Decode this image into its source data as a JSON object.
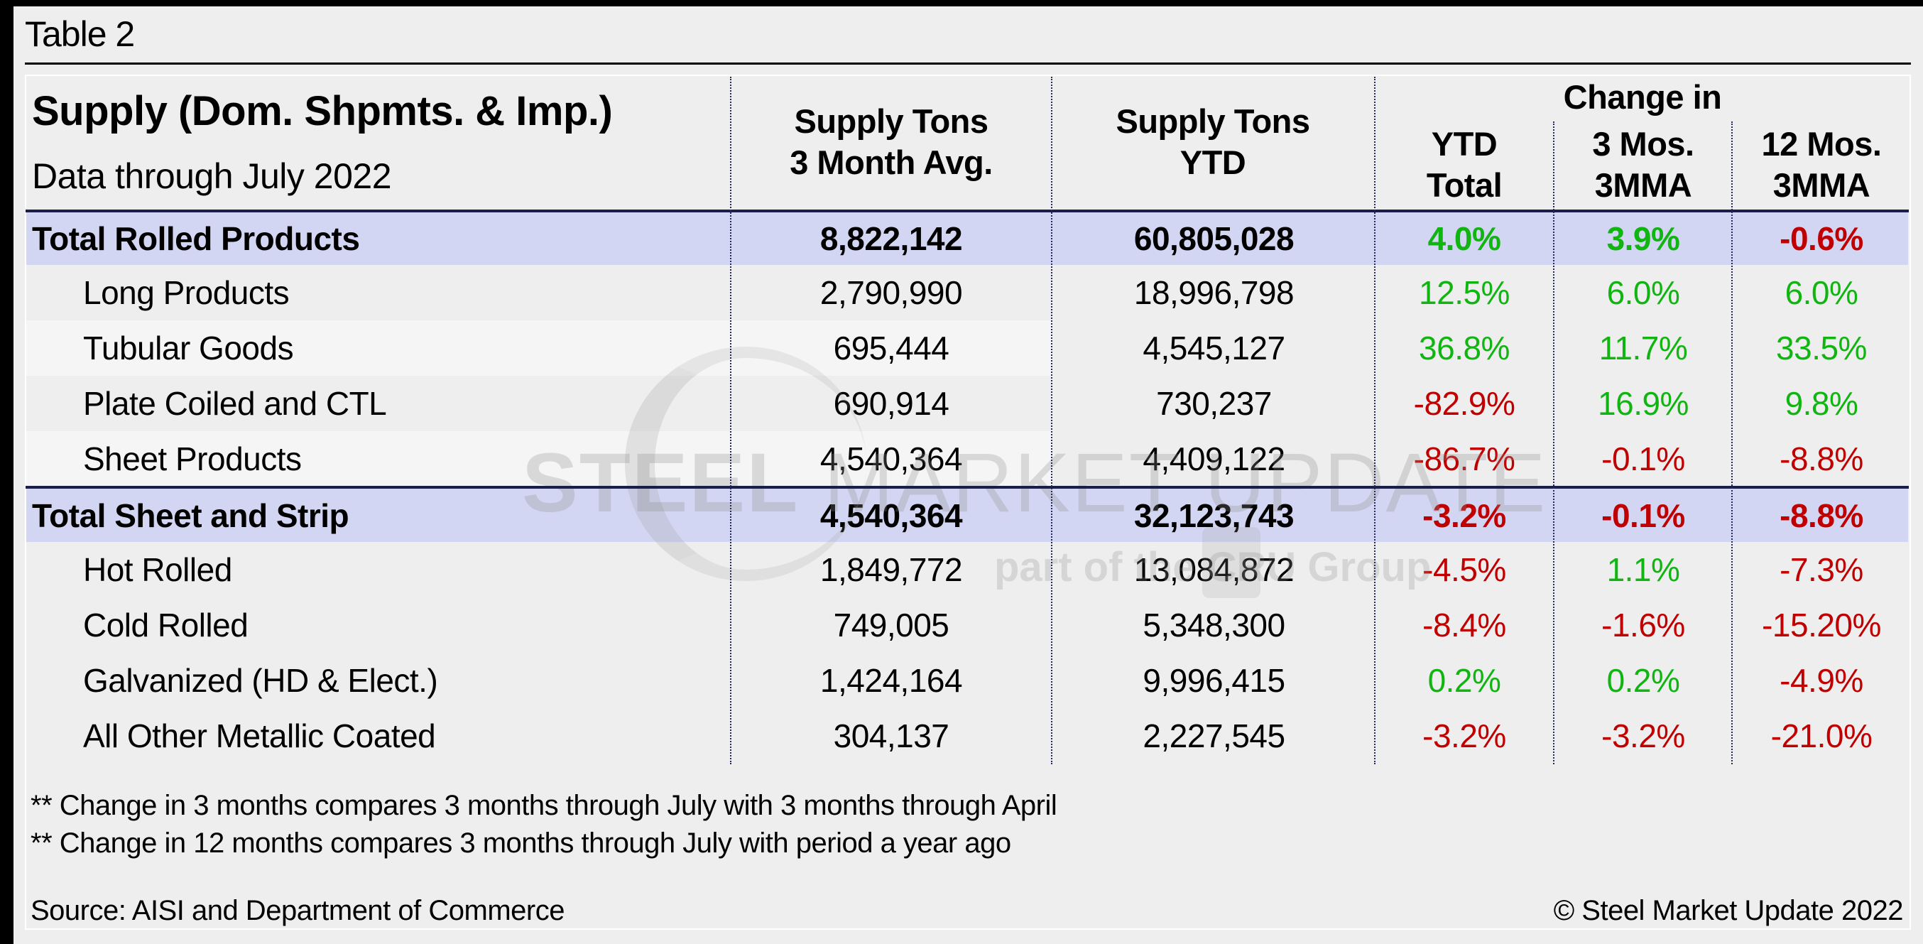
{
  "page": {
    "table_label": "Table 2",
    "title": "Supply (Dom. Shpmts. & Imp.)",
    "subtitle": "Data through July 2022"
  },
  "columns": {
    "supply_3mo_line1": "Supply Tons",
    "supply_3mo_line2": "3 Month Avg.",
    "supply_ytd_line1": "Supply Tons",
    "supply_ytd_line2": "YTD",
    "change_group": "Change in",
    "ytd_total_line1": "YTD",
    "ytd_total_line2": "Total",
    "mos3_line1": "3 Mos.",
    "mos3_line2": "3MMA",
    "mos12_line1": "12 Mos.",
    "mos12_line2": "3MMA"
  },
  "rows": [
    {
      "label": "Total Rolled Products",
      "avg3": "8,822,142",
      "ytd": "60,805,028",
      "ytd_chg": "4.0%",
      "chg3": "3.9%",
      "chg12": "-0.6%",
      "total": true
    },
    {
      "label": "Long Products",
      "avg3": "2,790,990",
      "ytd": "18,996,798",
      "ytd_chg": "12.5%",
      "chg3": "6.0%",
      "chg12": "6.0%"
    },
    {
      "label": "Tubular Goods",
      "avg3": "695,444",
      "ytd": "4,545,127",
      "ytd_chg": "36.8%",
      "chg3": "11.7%",
      "chg12": "33.5%"
    },
    {
      "label": "Plate Coiled and CTL",
      "avg3": "690,914",
      "ytd": "730,237",
      "ytd_chg": "-82.9%",
      "chg3": "16.9%",
      "chg12": "9.8%"
    },
    {
      "label": "Sheet Products",
      "avg3": "4,540,364",
      "ytd": "4,409,122",
      "ytd_chg": "-86.7%",
      "chg3": "-0.1%",
      "chg12": "-8.8%"
    },
    {
      "label": "Total Sheet and Strip",
      "avg3": "4,540,364",
      "ytd": "32,123,743",
      "ytd_chg": "-3.2%",
      "chg3": "-0.1%",
      "chg12": "-8.8%",
      "total": true
    },
    {
      "label": "Hot Rolled",
      "avg3": "1,849,772",
      "ytd": "13,084,872",
      "ytd_chg": "-4.5%",
      "chg3": "1.1%",
      "chg12": "-7.3%"
    },
    {
      "label": "Cold Rolled",
      "avg3": "749,005",
      "ytd": "5,348,300",
      "ytd_chg": "-8.4%",
      "chg3": "-1.6%",
      "chg12": "-15.20%"
    },
    {
      "label": "Galvanized (HD & Elect.)",
      "avg3": "1,424,164",
      "ytd": "9,996,415",
      "ytd_chg": "0.2%",
      "chg3": "0.2%",
      "chg12": "-4.9%"
    },
    {
      "label": "All Other Metallic Coated",
      "avg3": "304,137",
      "ytd": "2,227,545",
      "ytd_chg": "-3.2%",
      "chg3": "-3.2%",
      "chg12": "-21.0%"
    }
  ],
  "notes": {
    "note1": "** Change in 3 months compares 3 months through July with 3 months through April",
    "note2": "** Change in 12 months compares 3 months through July with period a year ago",
    "source": "Source: AISI and Department of Commerce",
    "copyright": "© Steel Market Update 2022"
  },
  "watermark": {
    "brand_bold": "STEEL",
    "brand_light": " MARKET UPDATE",
    "tagline": "part of the CRU Group"
  },
  "colors": {
    "positive": "#11b511",
    "negative": "#c00000",
    "total_row_bg": "#d3d6f2",
    "rule": "#1a1f4a"
  }
}
